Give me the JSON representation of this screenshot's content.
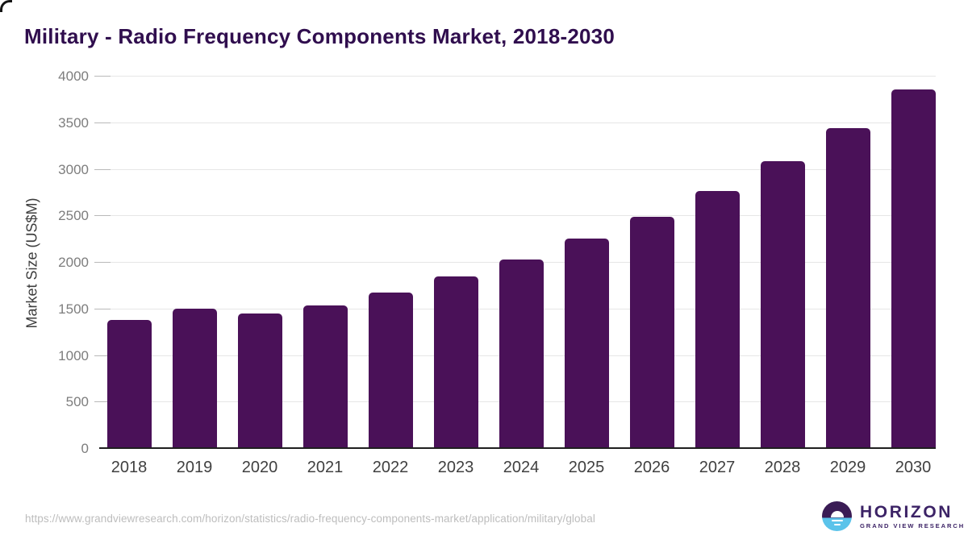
{
  "title": "Military - Radio Frequency Components Market, 2018-2030",
  "chart_data": {
    "type": "bar",
    "title": "Military - Radio Frequency Components Market, 2018-2030",
    "categories": [
      "2018",
      "2019",
      "2020",
      "2021",
      "2022",
      "2023",
      "2024",
      "2025",
      "2026",
      "2027",
      "2028",
      "2029",
      "2030"
    ],
    "values": [
      1384,
      1503,
      1452,
      1540,
      1677,
      1849,
      2039,
      2260,
      2490,
      2772,
      3090,
      3445,
      3859
    ],
    "xlabel": "",
    "ylabel": "Market Size (US$M)",
    "ylim": [
      0,
      4000
    ],
    "yticks": [
      0,
      500,
      1000,
      1500,
      2000,
      2500,
      3000,
      3500,
      4000
    ],
    "grid": true,
    "legend": false,
    "bar_color": "#4a1158"
  },
  "colors": {
    "title": "#300e4e",
    "bar": "#4a1158",
    "gridline": "#e6e6e6",
    "axis_line": "#1f1f1f",
    "ytick_text": "#7d7d7d",
    "xtick_text": "#404040",
    "url_text": "#bdbdbd",
    "logo_purple": "#3a1c55",
    "logo_blue": "#5bc3ea",
    "logo_text": "#3c2366"
  },
  "footer": {
    "source_url": "https://www.grandviewresearch.com/horizon/statistics/radio-frequency-components-market/application/military/global",
    "logo": {
      "name": "HORIZON",
      "tagline": "GRAND VIEW RESEARCH"
    }
  }
}
